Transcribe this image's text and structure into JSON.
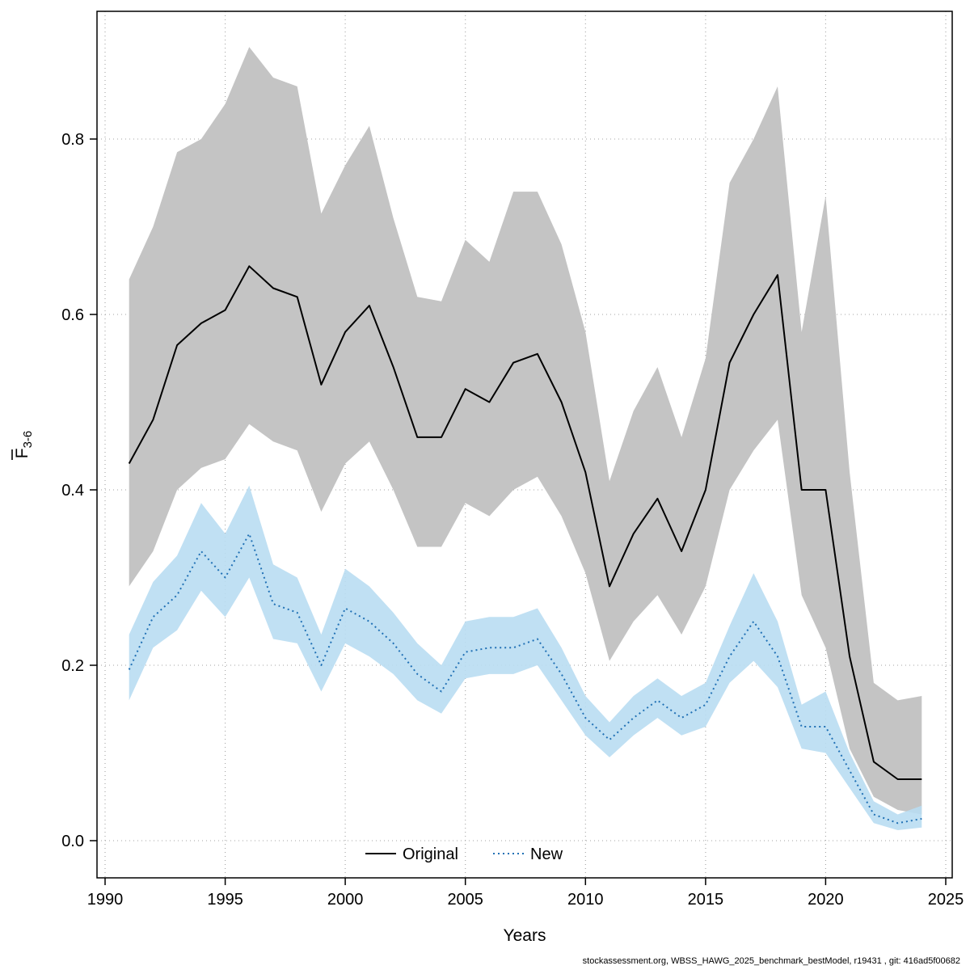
{
  "style": {
    "background": "#ffffff",
    "grid_color": "#a3a3a3",
    "axis_color": "#000000"
  },
  "axes": {
    "x_tick_labels": [
      "1990",
      "1995",
      "2000",
      "2005",
      "2010",
      "2015",
      "2020",
      "2025"
    ],
    "y_tick_labels": [
      "0.0",
      "0.2",
      "0.4",
      "0.6",
      "0.8"
    ]
  },
  "legend": {
    "items": [
      {
        "label": "Original"
      },
      {
        "label": "New"
      }
    ]
  },
  "footer": {
    "text": "stockassessment.org, WBSS_HAWG_2025_benchmark_bestModel, r19431 , git: 416ad5f00682"
  },
  "chart_data": {
    "type": "line",
    "title": "",
    "xlabel": "Years",
    "ylabel": "F",
    "ylabel_overline": true,
    "ylabel_subscript": "3-6",
    "xlim": [
      1990,
      2025
    ],
    "ylim": [
      0,
      0.9
    ],
    "xticks": [
      1990,
      1995,
      2000,
      2005,
      2010,
      2015,
      2020,
      2025
    ],
    "yticks": [
      0,
      0.2,
      0.4,
      0.6,
      0.8
    ],
    "grid": "dotted",
    "legend_position": "bottom-center-inside",
    "x": [
      1991,
      1992,
      1993,
      1994,
      1995,
      1996,
      1997,
      1998,
      1999,
      2000,
      2001,
      2002,
      2003,
      2004,
      2005,
      2006,
      2007,
      2008,
      2009,
      2010,
      2011,
      2012,
      2013,
      2014,
      2015,
      2016,
      2017,
      2018,
      2019,
      2020,
      2021,
      2022,
      2023,
      2024
    ],
    "series": [
      {
        "name": "Original",
        "line_style": "solid",
        "color": "#000000",
        "band_color": "#c4c4c4",
        "band_opacity": 1,
        "values": [
          0.43,
          0.48,
          0.565,
          0.59,
          0.605,
          0.655,
          0.63,
          0.62,
          0.52,
          0.58,
          0.61,
          0.54,
          0.46,
          0.46,
          0.515,
          0.5,
          0.545,
          0.555,
          0.5,
          0.42,
          0.29,
          0.35,
          0.39,
          0.33,
          0.4,
          0.545,
          0.6,
          0.645,
          0.4,
          0.4,
          0.21,
          0.09,
          0.07,
          0.07
        ],
        "lower": [
          0.29,
          0.33,
          0.4,
          0.425,
          0.435,
          0.475,
          0.455,
          0.445,
          0.375,
          0.43,
          0.455,
          0.4,
          0.335,
          0.335,
          0.385,
          0.37,
          0.4,
          0.415,
          0.37,
          0.305,
          0.205,
          0.25,
          0.28,
          0.235,
          0.29,
          0.4,
          0.445,
          0.48,
          0.28,
          0.22,
          0.105,
          0.05,
          0.035,
          0.03
        ],
        "upper": [
          0.64,
          0.7,
          0.785,
          0.8,
          0.84,
          0.905,
          0.87,
          0.86,
          0.715,
          0.77,
          0.815,
          0.71,
          0.62,
          0.615,
          0.685,
          0.66,
          0.74,
          0.74,
          0.68,
          0.58,
          0.41,
          0.49,
          0.54,
          0.46,
          0.55,
          0.75,
          0.8,
          0.86,
          0.58,
          0.735,
          0.42,
          0.18,
          0.16,
          0.165
        ]
      },
      {
        "name": "New",
        "line_style": "dotted",
        "color": "#2171b5",
        "band_color": "#b9ddf2",
        "band_opacity": 0.9,
        "values": [
          0.195,
          0.255,
          0.28,
          0.33,
          0.3,
          0.35,
          0.27,
          0.26,
          0.2,
          0.265,
          0.25,
          0.225,
          0.19,
          0.17,
          0.215,
          0.22,
          0.22,
          0.23,
          0.19,
          0.14,
          0.115,
          0.14,
          0.16,
          0.14,
          0.155,
          0.21,
          0.25,
          0.21,
          0.13,
          0.13,
          0.08,
          0.03,
          0.02,
          0.025
        ],
        "lower": [
          0.16,
          0.22,
          0.24,
          0.285,
          0.255,
          0.3,
          0.23,
          0.225,
          0.17,
          0.225,
          0.21,
          0.19,
          0.16,
          0.145,
          0.185,
          0.19,
          0.19,
          0.2,
          0.16,
          0.12,
          0.095,
          0.12,
          0.14,
          0.12,
          0.13,
          0.18,
          0.205,
          0.175,
          0.105,
          0.1,
          0.06,
          0.02,
          0.012,
          0.015
        ],
        "upper": [
          0.235,
          0.295,
          0.325,
          0.385,
          0.35,
          0.405,
          0.315,
          0.3,
          0.235,
          0.31,
          0.29,
          0.26,
          0.225,
          0.2,
          0.25,
          0.255,
          0.255,
          0.265,
          0.22,
          0.165,
          0.135,
          0.165,
          0.185,
          0.165,
          0.18,
          0.245,
          0.305,
          0.25,
          0.155,
          0.17,
          0.1,
          0.045,
          0.03,
          0.04
        ]
      }
    ]
  }
}
